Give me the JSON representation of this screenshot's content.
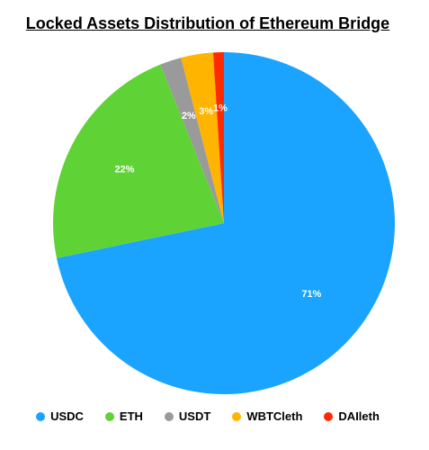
{
  "chart_data": {
    "type": "pie",
    "title": "Locked Assets Distribution of Ethereum Bridge",
    "slices": [
      {
        "label": "USDC",
        "value": 71,
        "percent_label": "71%",
        "color": "#1AA3FF"
      },
      {
        "label": "ETH",
        "value": 22,
        "percent_label": "22%",
        "color": "#5FD335"
      },
      {
        "label": "USDT",
        "value": 2,
        "percent_label": "2%",
        "color": "#9A9A9A"
      },
      {
        "label": "WBTCleth",
        "value": 3,
        "percent_label": "3%",
        "color": "#FFB400"
      },
      {
        "label": "DAIleth",
        "value": 1,
        "percent_label": "1%",
        "color": "#FF2A00"
      }
    ],
    "legend_position": "bottom",
    "start_angle": "12 o'clock",
    "direction": "clockwise"
  }
}
